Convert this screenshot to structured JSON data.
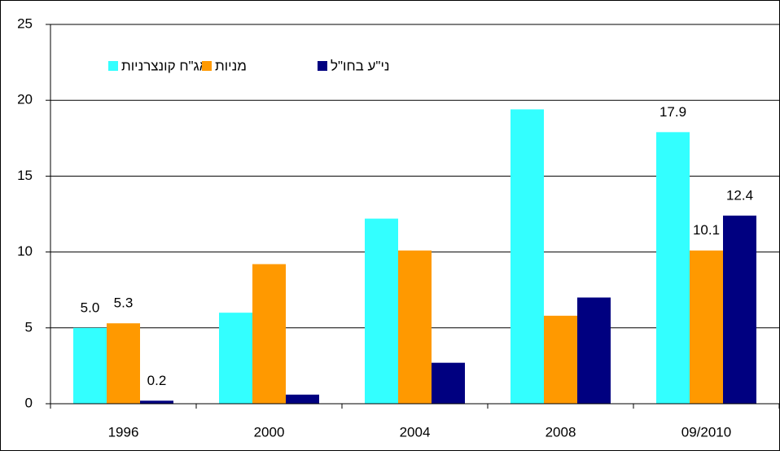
{
  "chart_data": {
    "type": "bar",
    "categories": [
      "1996",
      "2000",
      "2004",
      "2008",
      "09/2010"
    ],
    "series": [
      {
        "name": "אג\"ח קונצרניות",
        "color": "#33ffff",
        "values": [
          5.0,
          6.0,
          12.2,
          19.4,
          17.9
        ],
        "value_labels": [
          "5.0",
          null,
          null,
          null,
          "17.9"
        ]
      },
      {
        "name": "מניות",
        "color": "#ff9900",
        "values": [
          5.3,
          9.2,
          10.1,
          5.8,
          10.1
        ],
        "value_labels": [
          "5.3",
          null,
          null,
          null,
          "10.1"
        ]
      },
      {
        "name": "ני\"ע בחו\"ל",
        "color": "#000080",
        "values": [
          0.2,
          0.6,
          2.7,
          7.0,
          12.4
        ],
        "value_labels": [
          "0.2",
          null,
          null,
          null,
          "12.4"
        ]
      }
    ],
    "ylim": [
      0,
      25
    ],
    "yticks": [
      0,
      5,
      10,
      15,
      20,
      25
    ],
    "grid": true
  }
}
